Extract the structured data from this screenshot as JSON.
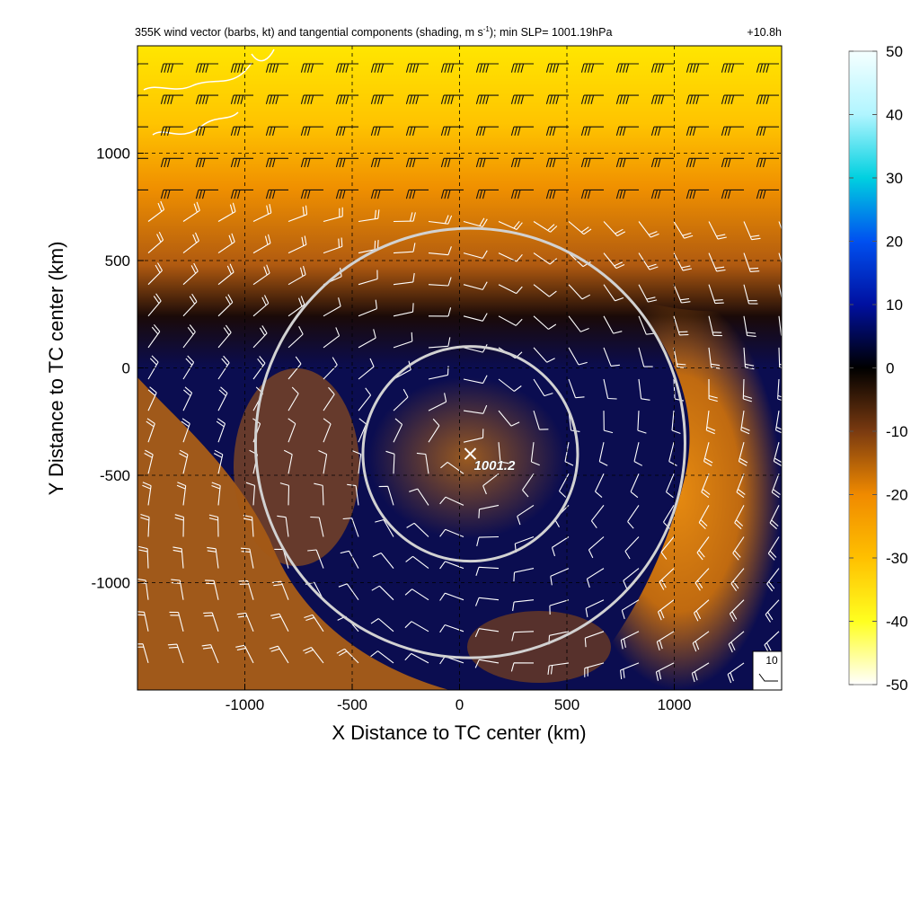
{
  "title": "355K wind vector (barbs, kt) and tangential components (shading, m s",
  "title_sup": "-1",
  "title_rest": "); min SLP= 1001.19hPa",
  "forecast_hour": "+10.8h",
  "colors": {
    "ring": "#d2d2d2",
    "barb": "#ffffff",
    "coast": "#ffffff",
    "grid": "#000000",
    "colormap": [
      "#ffffff",
      "#ffff00",
      "#ff8c00",
      "#8b4513",
      "#000000",
      "#00008b",
      "#0000ff",
      "#00bfff",
      "#e0ffff"
    ]
  },
  "chart_data": {
    "type": "heatmap",
    "title": "355K wind vector (barbs, kt) and tangential components (shading, m s-1); min SLP= 1001.19hPa",
    "xlabel": "X Distance to TC center (km)",
    "ylabel": "Y Distance to TC center (km)",
    "xlim": [
      -1500,
      1500
    ],
    "ylim": [
      -1500,
      1500
    ],
    "xticks": [
      -1000,
      -500,
      0,
      500,
      1000
    ],
    "yticks": [
      -1000,
      -500,
      0,
      500,
      1000
    ],
    "xtick_labels": [
      "-1000",
      "-500",
      "0",
      "500",
      "1000"
    ],
    "ytick_labels": [
      "-1000",
      "-500",
      "0",
      "500",
      "1000"
    ],
    "grid": true,
    "colorbar": {
      "label": "",
      "min": -50,
      "max": 50,
      "ticks": [
        50,
        40,
        30,
        20,
        10,
        0,
        -10,
        -20,
        -30,
        -40,
        -50
      ],
      "tick_labels": [
        "50",
        "40",
        "30",
        "20",
        "10",
        "0",
        "-10",
        "-20",
        "-30",
        "-40",
        "-50"
      ]
    },
    "min_slp": {
      "value": 1001.19,
      "label": "1001.2",
      "x": 50,
      "y": -400
    },
    "rings": [
      {
        "center_x": 50,
        "center_y": -400,
        "radius": 500
      },
      {
        "center_x": 50,
        "center_y": -350,
        "radius": 1000
      }
    ],
    "reference_barb": {
      "value": 10,
      "label": "10"
    },
    "shading_description_fields": {
      "north_band_value": -40,
      "ring_band_value": -10,
      "inner_value": 5
    }
  }
}
